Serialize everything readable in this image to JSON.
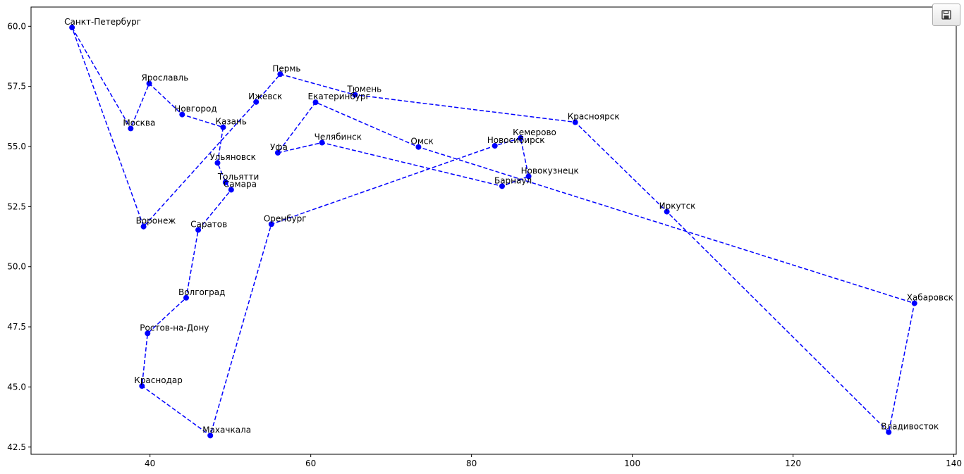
{
  "toolbar": {
    "save_icon": "floppy-disk-icon"
  },
  "chart_data": {
    "type": "line",
    "title": "",
    "xlabel": "",
    "ylabel": "",
    "xlim": [
      25.2,
      140.3
    ],
    "ylim": [
      42.2,
      60.8
    ],
    "xticks": [
      40,
      60,
      80,
      100,
      120,
      140
    ],
    "yticks": [
      42.5,
      45.0,
      47.5,
      50.0,
      52.5,
      55.0,
      57.5,
      60.0
    ],
    "xtick_labels": [
      "40",
      "60",
      "80",
      "100",
      "120",
      "140"
    ],
    "ytick_labels": [
      "42.5",
      "45.0",
      "47.5",
      "50.0",
      "52.5",
      "55.0",
      "57.5",
      "60.0"
    ],
    "grid": false,
    "line_style": "dashed",
    "color": "#0000ff",
    "cities": [
      {
        "name": "Санкт-Петербург",
        "x": 30.3,
        "y": 59.95
      },
      {
        "name": "Москва",
        "x": 37.6,
        "y": 55.75
      },
      {
        "name": "Ярославль",
        "x": 39.9,
        "y": 57.62
      },
      {
        "name": "Новгород",
        "x": 44.0,
        "y": 56.33
      },
      {
        "name": "Казань",
        "x": 49.1,
        "y": 55.8
      },
      {
        "name": "Ульяновск",
        "x": 48.4,
        "y": 54.32
      },
      {
        "name": "Тольятти",
        "x": 49.4,
        "y": 53.51
      },
      {
        "name": "Самара",
        "x": 50.1,
        "y": 53.2
      },
      {
        "name": "Саратов",
        "x": 46.0,
        "y": 51.53
      },
      {
        "name": "Волгоград",
        "x": 44.5,
        "y": 48.71
      },
      {
        "name": "Ростов-на-Дону",
        "x": 39.7,
        "y": 47.23
      },
      {
        "name": "Краснодар",
        "x": 39.0,
        "y": 45.04
      },
      {
        "name": "Махачкала",
        "x": 47.5,
        "y": 42.98
      },
      {
        "name": "Оренбург",
        "x": 55.1,
        "y": 51.77
      },
      {
        "name": "Новосибирск",
        "x": 82.9,
        "y": 55.03
      },
      {
        "name": "Кемерово",
        "x": 86.1,
        "y": 55.35
      },
      {
        "name": "Новокузнецк",
        "x": 87.1,
        "y": 53.76
      },
      {
        "name": "Барнаул",
        "x": 83.8,
        "y": 53.35
      },
      {
        "name": "Челябинск",
        "x": 61.4,
        "y": 55.16
      },
      {
        "name": "Уфа",
        "x": 55.9,
        "y": 54.74
      },
      {
        "name": "Екатеринбург",
        "x": 60.6,
        "y": 56.84
      },
      {
        "name": "Омск",
        "x": 73.4,
        "y": 54.98
      },
      {
        "name": "Хабаровск",
        "x": 135.1,
        "y": 48.48
      },
      {
        "name": "Владивосток",
        "x": 131.9,
        "y": 43.12
      },
      {
        "name": "Иркутск",
        "x": 104.3,
        "y": 52.29
      },
      {
        "name": "Красноярск",
        "x": 92.9,
        "y": 56.01
      },
      {
        "name": "Тюмень",
        "x": 65.5,
        "y": 57.15
      },
      {
        "name": "Пермь",
        "x": 56.2,
        "y": 58.01
      },
      {
        "name": "Ижевск",
        "x": 53.2,
        "y": 56.85
      },
      {
        "name": "Воронеж",
        "x": 39.2,
        "y": 51.67
      }
    ],
    "closed": true
  }
}
